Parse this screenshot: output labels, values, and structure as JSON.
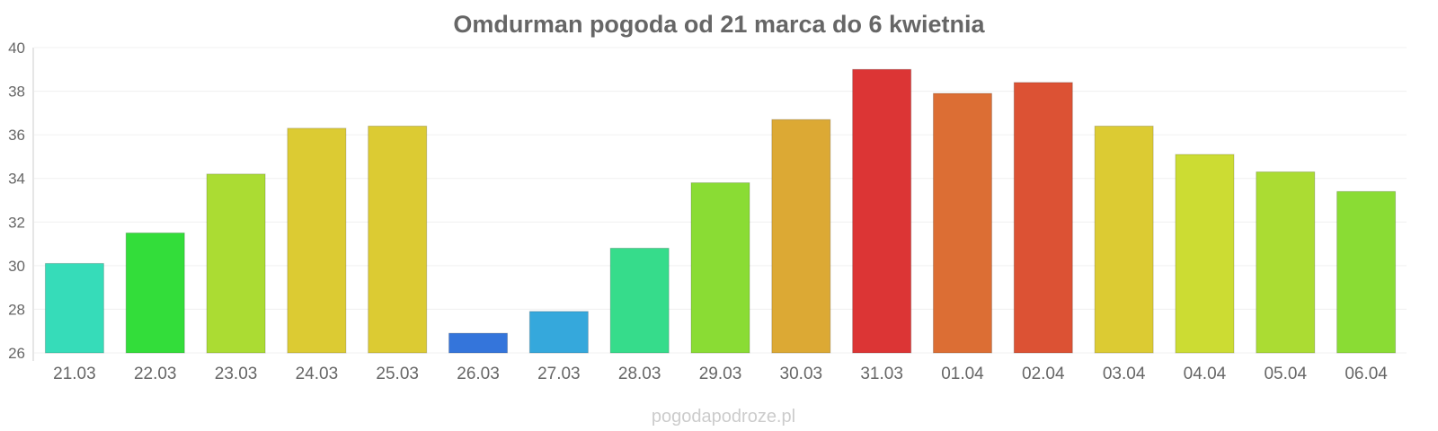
{
  "chart_data": {
    "type": "bar",
    "title": "Omdurman pogoda od 21 marca do 6 kwietnia",
    "xlabel": "",
    "ylabel": "",
    "ylim": [
      26,
      40
    ],
    "yticks": [
      26,
      28,
      30,
      32,
      34,
      36,
      38,
      40
    ],
    "grid": true,
    "categories": [
      "21.03",
      "22.03",
      "23.03",
      "24.03",
      "25.03",
      "26.03",
      "27.03",
      "28.03",
      "29.03",
      "30.03",
      "31.03",
      "01.04",
      "02.04",
      "03.04",
      "04.04",
      "05.04",
      "06.04"
    ],
    "values": [
      30.1,
      31.5,
      34.2,
      36.3,
      36.4,
      26.9,
      27.9,
      30.8,
      33.8,
      36.7,
      39.0,
      37.9,
      38.4,
      36.4,
      35.1,
      34.3,
      33.4
    ],
    "colors": [
      "#36dcb9",
      "#33dd3a",
      "#abdc33",
      "#dccb33",
      "#dccb33",
      "#3475db",
      "#35a8dc",
      "#36dc8b",
      "#8adc34",
      "#dca934",
      "#dc3535",
      "#dc6e34",
      "#dc5234",
      "#dccb33",
      "#ccdc33",
      "#abdc33",
      "#8adc34"
    ]
  },
  "source": "pogodapodroze.pl"
}
